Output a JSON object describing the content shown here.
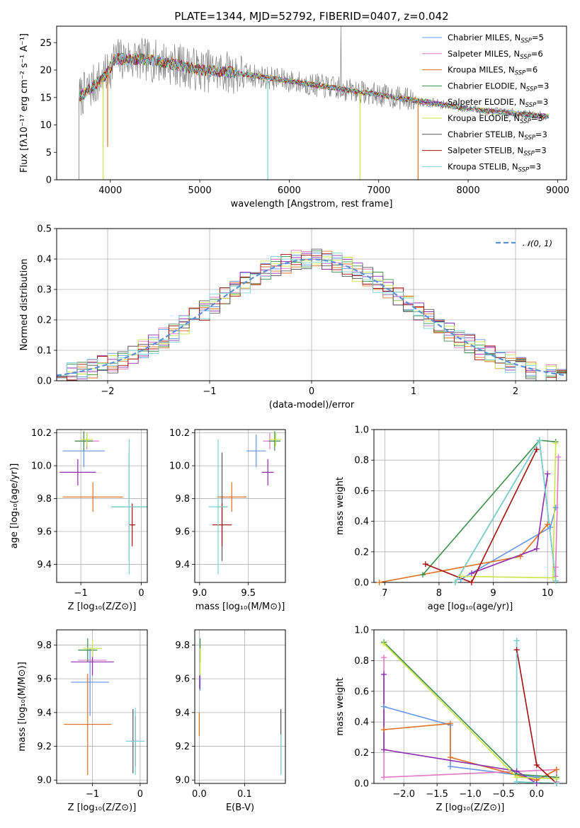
{
  "colors": {
    "Chabrier MILES": "#6495ed",
    "Salpeter MILES": "#e377c2",
    "Kroupa MILES": "#e07020",
    "Chabrier ELODIE": "#3c8f4a",
    "Salpeter ELODIE": "#8e2caf",
    "Kroupa ELODIE": "#c8e645",
    "Chabrier STELIB": "#555555",
    "Salpeter STELIB": "#a00e0e",
    "Kroupa STELIB": "#7ad4d4",
    "data": "#808080",
    "normal": "#5b8fd6"
  },
  "chart_data": [
    {
      "id": "spectrum",
      "type": "line",
      "title": "PLATE=1344, MJD=52792, FIBERID=0407, z=0.042",
      "xlabel": "wavelength [Angstrom, rest frame]",
      "ylabel": "Flux [fλ10⁻¹⁷ erg cm⁻² s⁻¹ A⁻¹]",
      "xlim": [
        3400,
        9100
      ],
      "ylim": [
        0,
        28
      ],
      "xticks": [
        4000,
        5000,
        6000,
        7000,
        8000,
        9000
      ],
      "yticks": [
        0,
        5,
        10,
        15,
        20,
        25
      ],
      "legend": [
        "Chabrier MILES, N_SSP=5",
        "Salpeter MILES, N_SSP=6",
        "Kroupa MILES, N_SSP=6",
        "Chabrier ELODIE, N_SSP=3",
        "Salpeter ELODIE, N_SSP=3",
        "Kroupa ELODIE, N_SSP=3",
        "Chabrier STELIB, N_SSP=3",
        "Salpeter STELIB, N_SSP=3",
        "Kroupa STELIB, N_SSP=3"
      ],
      "legend_position": "right",
      "continuum": {
        "x": [
          3650,
          3800,
          3950,
          4050,
          4300,
          4600,
          5000,
          5400,
          5800,
          6200,
          6600,
          7000,
          7400,
          7800,
          8200,
          8600,
          8900
        ],
        "y": [
          15,
          17,
          19,
          22,
          22,
          21.5,
          20,
          19.5,
          18.5,
          17.5,
          16.5,
          15.5,
          14.5,
          13.5,
          12.5,
          12,
          11.5
        ]
      },
      "dips": [
        {
          "x": 3920,
          "y": 0
        },
        {
          "x": 3970,
          "y": 6
        },
        {
          "x": 5760,
          "y": 0
        },
        {
          "x": 6790,
          "y": 0
        },
        {
          "x": 7440,
          "y": 0
        }
      ]
    },
    {
      "id": "residuals",
      "type": "bar",
      "xlabel": "(data-model)/error",
      "ylabel": "Normed distribution",
      "xlim": [
        -2.5,
        2.5
      ],
      "ylim": [
        0,
        0.5
      ],
      "xticks": [
        -2,
        -1,
        0,
        1,
        2
      ],
      "yticks": [
        0,
        0.1,
        0.2,
        0.3,
        0.4,
        0.5
      ],
      "legend": [
        "𝒩(0, 1)"
      ],
      "legend_position": "upper right",
      "bin_width": 0.1
    },
    {
      "id": "age_vs_Z",
      "type": "scatter",
      "xlabel": "Z [log₁₀(Z/Z⊙)]",
      "ylabel": "age  [log₁₀(age/yr)]",
      "xlim": [
        -1.4,
        0.1
      ],
      "ylim": [
        9.29,
        10.22
      ],
      "xticks": [
        -1,
        0
      ],
      "yticks": [
        9.4,
        9.6,
        9.8,
        10.0,
        10.2
      ],
      "points": [
        {
          "model": "Chabrier MILES",
          "x": -0.95,
          "y": 10.09,
          "xerr": 0.35,
          "yerr": 0.1
        },
        {
          "model": "Salpeter MILES",
          "x": -0.9,
          "y": 10.15,
          "xerr": 0.2,
          "yerr": 0.05
        },
        {
          "model": "Kroupa MILES",
          "x": -0.8,
          "y": 9.81,
          "xerr": 0.5,
          "yerr": 0.09
        },
        {
          "model": "Chabrier ELODIE",
          "x": -0.95,
          "y": 10.15,
          "xerr": 0.15,
          "yerr": 0.06
        },
        {
          "model": "Salpeter ELODIE",
          "x": -1.05,
          "y": 9.96,
          "xerr": 0.3,
          "yerr": 0.08
        },
        {
          "model": "Kroupa ELODIE",
          "x": -0.9,
          "y": 10.16,
          "xerr": 0.1,
          "yerr": 0.04
        },
        {
          "model": "Chabrier STELIB",
          "x": -0.2,
          "y": 9.75,
          "xerr": 0.3,
          "yerr": 0.33
        },
        {
          "model": "Salpeter STELIB",
          "x": -0.15,
          "y": 9.64,
          "xerr": 0.05,
          "yerr": 0.13
        },
        {
          "model": "Kroupa STELIB",
          "x": -0.2,
          "y": 9.75,
          "xerr": 0.3,
          "yerr": 0.41
        }
      ]
    },
    {
      "id": "age_vs_mass",
      "type": "scatter",
      "xlabel": "mass [log₁₀(M/M⊙)]",
      "ylabel": "",
      "xlim": [
        8.95,
        9.88
      ],
      "ylim": [
        9.29,
        10.22
      ],
      "xticks": [
        9.0,
        9.5
      ],
      "yticks": [
        9.4,
        9.6,
        9.8,
        10.0,
        10.2
      ],
      "points": [
        {
          "model": "Chabrier MILES",
          "x": 9.58,
          "y": 10.09,
          "xerr": 0.1,
          "yerr": 0.1
        },
        {
          "model": "Salpeter MILES",
          "x": 9.72,
          "y": 10.15,
          "xerr": 0.07,
          "yerr": 0.05
        },
        {
          "model": "Kroupa MILES",
          "x": 9.33,
          "y": 9.81,
          "xerr": 0.15,
          "yerr": 0.09
        },
        {
          "model": "Chabrier ELODIE",
          "x": 9.77,
          "y": 10.15,
          "xerr": 0.06,
          "yerr": 0.06
        },
        {
          "model": "Salpeter ELODIE",
          "x": 9.7,
          "y": 9.96,
          "xerr": 0.06,
          "yerr": 0.08
        },
        {
          "model": "Kroupa ELODIE",
          "x": 9.78,
          "y": 10.16,
          "xerr": 0.06,
          "yerr": 0.04
        },
        {
          "model": "Chabrier STELIB",
          "x": 9.23,
          "y": 9.75,
          "xerr": 0.05,
          "yerr": 0.33
        },
        {
          "model": "Salpeter STELIB",
          "x": 9.23,
          "y": 9.64,
          "xerr": 0.1,
          "yerr": 0.13
        },
        {
          "model": "Kroupa STELIB",
          "x": 9.19,
          "y": 9.75,
          "xerr": 0.1,
          "yerr": 0.41
        }
      ]
    },
    {
      "id": "weight_vs_age",
      "type": "line",
      "xlabel": "age  [log₁₀(age/yr)]",
      "ylabel": "mass weight",
      "xlim": [
        6.8,
        10.35
      ],
      "ylim": [
        0,
        1
      ],
      "xticks": [
        7,
        8,
        9,
        10
      ],
      "yticks": [
        0,
        0.2,
        0.4,
        0.6,
        0.8,
        1.0
      ],
      "series": [
        {
          "model": "Chabrier MILES",
          "x": [
            8.4,
            10.05,
            10.15
          ],
          "y": [
            0.02,
            0.36,
            0.49
          ]
        },
        {
          "model": "Salpeter MILES",
          "x": [
            10.15,
            10.15,
            10.2
          ],
          "y": [
            0.04,
            0.1,
            0.82
          ]
        },
        {
          "model": "Kroupa MILES",
          "x": [
            6.9,
            9.5,
            10.0
          ],
          "y": [
            0.0,
            0.17,
            0.38
          ]
        },
        {
          "model": "Chabrier ELODIE",
          "x": [
            7.7,
            9.85,
            10.15
          ],
          "y": [
            0.05,
            0.93,
            0.92
          ]
        },
        {
          "model": "Salpeter ELODIE",
          "x": [
            8.6,
            9.8,
            10.0
          ],
          "y": [
            0.06,
            0.22,
            0.71
          ]
        },
        {
          "model": "Kroupa ELODIE",
          "x": [
            8.4,
            10.1,
            10.15
          ],
          "y": [
            0.04,
            0.03,
            0.91
          ]
        },
        {
          "model": "Chabrier STELIB",
          "x": [
            8.3,
            9.85,
            10.15
          ],
          "y": [
            0.0,
            0.93,
            0.01
          ]
        },
        {
          "model": "Salpeter STELIB",
          "x": [
            7.75,
            8.6,
            9.8
          ],
          "y": [
            0.12,
            0.0,
            0.87
          ]
        },
        {
          "model": "Kroupa STELIB",
          "x": [
            8.3,
            9.85,
            10.15
          ],
          "y": [
            0.0,
            0.93,
            0.01
          ]
        }
      ]
    },
    {
      "id": "mass_vs_Z",
      "type": "scatter",
      "xlabel": "Z [log₁₀(Z/Z⊙)]",
      "ylabel": "mass [log₁₀(M/M⊙)]",
      "xlim": [
        -1.75,
        0.15
      ],
      "ylim": [
        8.98,
        9.89
      ],
      "xticks": [
        -1,
        0
      ],
      "yticks": [
        9.0,
        9.2,
        9.4,
        9.6,
        9.8
      ],
      "points": [
        {
          "model": "Chabrier MILES",
          "x": -1.05,
          "y": 9.58,
          "xerr": 0.4,
          "yerr": 0.2
        },
        {
          "model": "Salpeter MILES",
          "x": -1.0,
          "y": 9.71,
          "xerr": 0.3,
          "yerr": 0.08
        },
        {
          "model": "Kroupa MILES",
          "x": -1.1,
          "y": 9.33,
          "xerr": 0.5,
          "yerr": 0.3
        },
        {
          "model": "Chabrier ELODIE",
          "x": -1.1,
          "y": 9.77,
          "xerr": 0.2,
          "yerr": 0.07
        },
        {
          "model": "Salpeter ELODIE",
          "x": -1.0,
          "y": 9.7,
          "xerr": 0.45,
          "yerr": 0.08
        },
        {
          "model": "Kroupa ELODIE",
          "x": -1.0,
          "y": 9.78,
          "xerr": 0.2,
          "yerr": 0.05
        },
        {
          "model": "Chabrier STELIB",
          "x": -0.15,
          "y": 9.23,
          "xerr": 0.05,
          "yerr": 0.19
        },
        {
          "model": "Salpeter STELIB",
          "x": -0.1,
          "y": 9.23,
          "xerr": 0.05,
          "yerr": 0.15
        },
        {
          "model": "Kroupa STELIB",
          "x": -0.1,
          "y": 9.23,
          "xerr": 0.2,
          "yerr": 0.2
        }
      ]
    },
    {
      "id": "mass_vs_ebv",
      "type": "scatter",
      "xlabel": "E(B-V)",
      "ylabel": "",
      "xlim": [
        -0.01,
        0.19
      ],
      "ylim": [
        8.98,
        9.89
      ],
      "xticks": [
        0.0,
        0.1
      ],
      "yticks": [
        9.0,
        9.2,
        9.4,
        9.6,
        9.8
      ],
      "points": [
        {
          "model": "Chabrier MILES",
          "x": 0.002,
          "y": 9.58,
          "xerr": 0,
          "yerr": 0.05
        },
        {
          "model": "Kroupa MILES",
          "x": 0.0,
          "y": 9.33,
          "xerr": 0,
          "yerr": 0.07
        },
        {
          "model": "Chabrier ELODIE",
          "x": 0.002,
          "y": 9.77,
          "xerr": 0,
          "yerr": 0.07
        },
        {
          "model": "Salpeter ELODIE",
          "x": 0.001,
          "y": 9.58,
          "xerr": 0,
          "yerr": 0.04
        },
        {
          "model": "Kroupa ELODIE",
          "x": 0.002,
          "y": 9.7,
          "xerr": 0,
          "yerr": 0.08
        },
        {
          "model": "Chabrier STELIB",
          "x": 0.18,
          "y": 9.23,
          "xerr": 0,
          "yerr": 0.19
        },
        {
          "model": "Kroupa STELIB",
          "x": 0.18,
          "y": 9.15,
          "xerr": 0,
          "yerr": 0.12
        }
      ]
    },
    {
      "id": "weight_vs_Z",
      "type": "line",
      "xlabel": "Z [log₁₀(Z/Z⊙)]",
      "ylabel": "mass weight",
      "xlim": [
        -2.45,
        0.45
      ],
      "ylim": [
        0,
        1
      ],
      "xticks": [
        -2.0,
        -1.5,
        -1.0,
        -0.5,
        0.0
      ],
      "yticks": [
        0,
        0.2,
        0.4,
        0.6,
        0.8,
        1.0
      ],
      "series": [
        {
          "model": "Chabrier MILES",
          "x": [
            -2.3,
            -1.3,
            -1.3,
            0.0,
            0.3
          ],
          "y": [
            0.5,
            0.38,
            0.11,
            0.04,
            0.03
          ]
        },
        {
          "model": "Salpeter MILES",
          "x": [
            -2.3,
            -2.3,
            0.3,
            0.3
          ],
          "y": [
            0.82,
            0.04,
            0.09,
            0.01
          ]
        },
        {
          "model": "Kroupa MILES",
          "x": [
            -2.3,
            -1.3,
            -1.3,
            0.0,
            0.3
          ],
          "y": [
            0.35,
            0.39,
            0.17,
            0.02,
            0.09
          ]
        },
        {
          "model": "Chabrier ELODIE",
          "x": [
            -2.3,
            -0.3,
            0.3
          ],
          "y": [
            0.92,
            0.06,
            0.04
          ]
        },
        {
          "model": "Salpeter ELODIE",
          "x": [
            -2.3,
            -2.3,
            -0.3,
            0.0
          ],
          "y": [
            0.71,
            0.22,
            0.08,
            0.0
          ]
        },
        {
          "model": "Kroupa ELODIE",
          "x": [
            -2.3,
            -0.3,
            0.3
          ],
          "y": [
            0.91,
            0.04,
            0.03
          ]
        },
        {
          "model": "Chabrier STELIB",
          "x": [
            -0.3,
            -0.3,
            0.3
          ],
          "y": [
            0.93,
            0.01,
            0.0
          ]
        },
        {
          "model": "Salpeter STELIB",
          "x": [
            -0.3,
            0.0,
            0.3
          ],
          "y": [
            0.87,
            0.12,
            0.0
          ]
        },
        {
          "model": "Kroupa STELIB",
          "x": [
            -0.3,
            -0.3,
            0.3
          ],
          "y": [
            0.93,
            0.01,
            0.0
          ]
        }
      ]
    }
  ]
}
